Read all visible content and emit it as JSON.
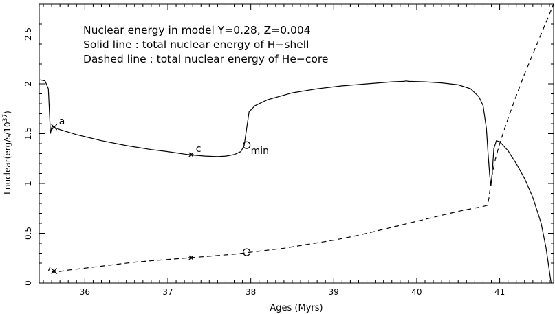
{
  "chart_data": {
    "type": "line",
    "title_lines": [
      "Nuclear energy in model Y=0.28, Z=0.004",
      "Solid line : total nuclear energy of H−shell",
      "Dashed line : total nuclear energy of He−core"
    ],
    "xlabel": "Ages (Myrs)",
    "ylabel": "Lnuclear(erg/s/10",
    "ylabel_sup": "37",
    "ylabel_close": ")",
    "xlim": [
      35.45,
      41.65
    ],
    "ylim": [
      0,
      2.8
    ],
    "x_ticks": [
      36,
      37,
      38,
      39,
      40,
      41
    ],
    "x_tick_labels": [
      "36",
      "37",
      "38",
      "39",
      "40",
      "41"
    ],
    "y_ticks": [
      0,
      0.5,
      1,
      1.5,
      2,
      2.5
    ],
    "y_tick_labels": [
      "0",
      "0.5",
      "1",
      "1.5",
      "2",
      "2.5"
    ],
    "grid": false,
    "series": [
      {
        "style": "solid",
        "x": [
          35.46,
          35.52,
          35.56,
          35.585,
          35.6,
          35.615,
          35.64,
          35.7,
          35.9,
          36.2,
          36.5,
          36.8,
          37.0,
          37.2,
          37.3,
          37.45,
          37.6,
          37.7,
          37.8,
          37.88,
          37.92,
          37.95,
          37.98,
          38.05,
          38.2,
          38.5,
          38.8,
          39.1,
          39.4,
          39.7,
          39.85,
          39.87,
          39.9,
          40.1,
          40.3,
          40.5,
          40.65,
          40.75,
          40.8,
          40.84,
          40.86,
          40.88,
          40.895,
          40.91,
          40.93,
          40.96,
          41.0,
          41.1,
          41.2,
          41.3,
          41.4,
          41.5,
          41.56,
          41.62
        ],
        "y": [
          2.04,
          2.03,
          1.95,
          1.5,
          1.56,
          1.57,
          1.56,
          1.54,
          1.49,
          1.43,
          1.38,
          1.34,
          1.32,
          1.295,
          1.285,
          1.275,
          1.27,
          1.275,
          1.29,
          1.32,
          1.38,
          1.55,
          1.72,
          1.78,
          1.84,
          1.91,
          1.95,
          1.98,
          2.0,
          2.02,
          2.025,
          2.03,
          2.025,
          2.02,
          2.01,
          1.99,
          1.95,
          1.87,
          1.78,
          1.55,
          1.3,
          1.08,
          0.98,
          1.1,
          1.35,
          1.43,
          1.42,
          1.33,
          1.2,
          1.05,
          0.86,
          0.6,
          0.35,
          0.0
        ]
      },
      {
        "style": "dashed",
        "x": [
          35.56,
          35.58,
          35.6,
          35.62,
          35.65,
          35.8,
          36.0,
          36.3,
          36.6,
          36.9,
          37.2,
          37.5,
          37.8,
          38.1,
          38.4,
          38.7,
          39.0,
          39.3,
          39.6,
          39.9,
          40.2,
          40.5,
          40.8,
          40.85,
          40.87,
          40.9,
          40.95,
          41.0,
          41.1,
          41.2,
          41.3,
          41.4,
          41.5,
          41.6,
          41.65
        ],
        "y": [
          0.12,
          0.16,
          0.12,
          0.11,
          0.11,
          0.13,
          0.15,
          0.18,
          0.21,
          0.23,
          0.25,
          0.27,
          0.29,
          0.32,
          0.35,
          0.39,
          0.43,
          0.48,
          0.54,
          0.6,
          0.66,
          0.72,
          0.77,
          0.78,
          0.85,
          1.05,
          1.25,
          1.4,
          1.65,
          1.88,
          2.1,
          2.3,
          2.5,
          2.7,
          2.8
        ]
      }
    ],
    "markers": [
      {
        "shape": "x",
        "x": 35.63,
        "y": 1.565,
        "label": "a"
      },
      {
        "shape": "star",
        "x": 37.28,
        "y": 1.29,
        "label": "c"
      },
      {
        "shape": "circle",
        "x": 37.95,
        "y": 1.385,
        "label": "min"
      },
      {
        "shape": "x",
        "x": 35.63,
        "y": 0.12,
        "label": ""
      },
      {
        "shape": "star",
        "x": 37.28,
        "y": 0.255,
        "label": ""
      },
      {
        "shape": "circle",
        "x": 37.95,
        "y": 0.31,
        "label": ""
      }
    ]
  }
}
